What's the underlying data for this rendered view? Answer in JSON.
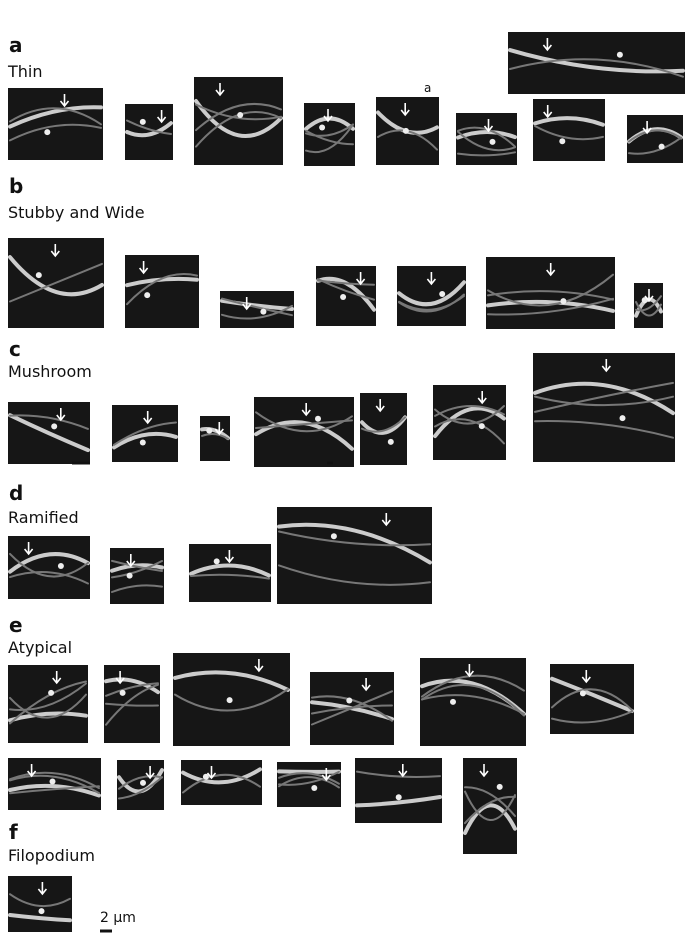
{
  "panels": [
    {
      "label": "a",
      "title": "Thin"
    },
    {
      "label": "b",
      "title": "Stubby and Wide"
    },
    {
      "label": "c",
      "title": "Mushroom"
    },
    {
      "label": "d",
      "title": "Ramified"
    },
    {
      "label": "e",
      "title": "Atypical"
    },
    {
      "label": "f",
      "title": "Filopodium"
    }
  ],
  "inset_label": "a",
  "scale_bar": "2 μm"
}
